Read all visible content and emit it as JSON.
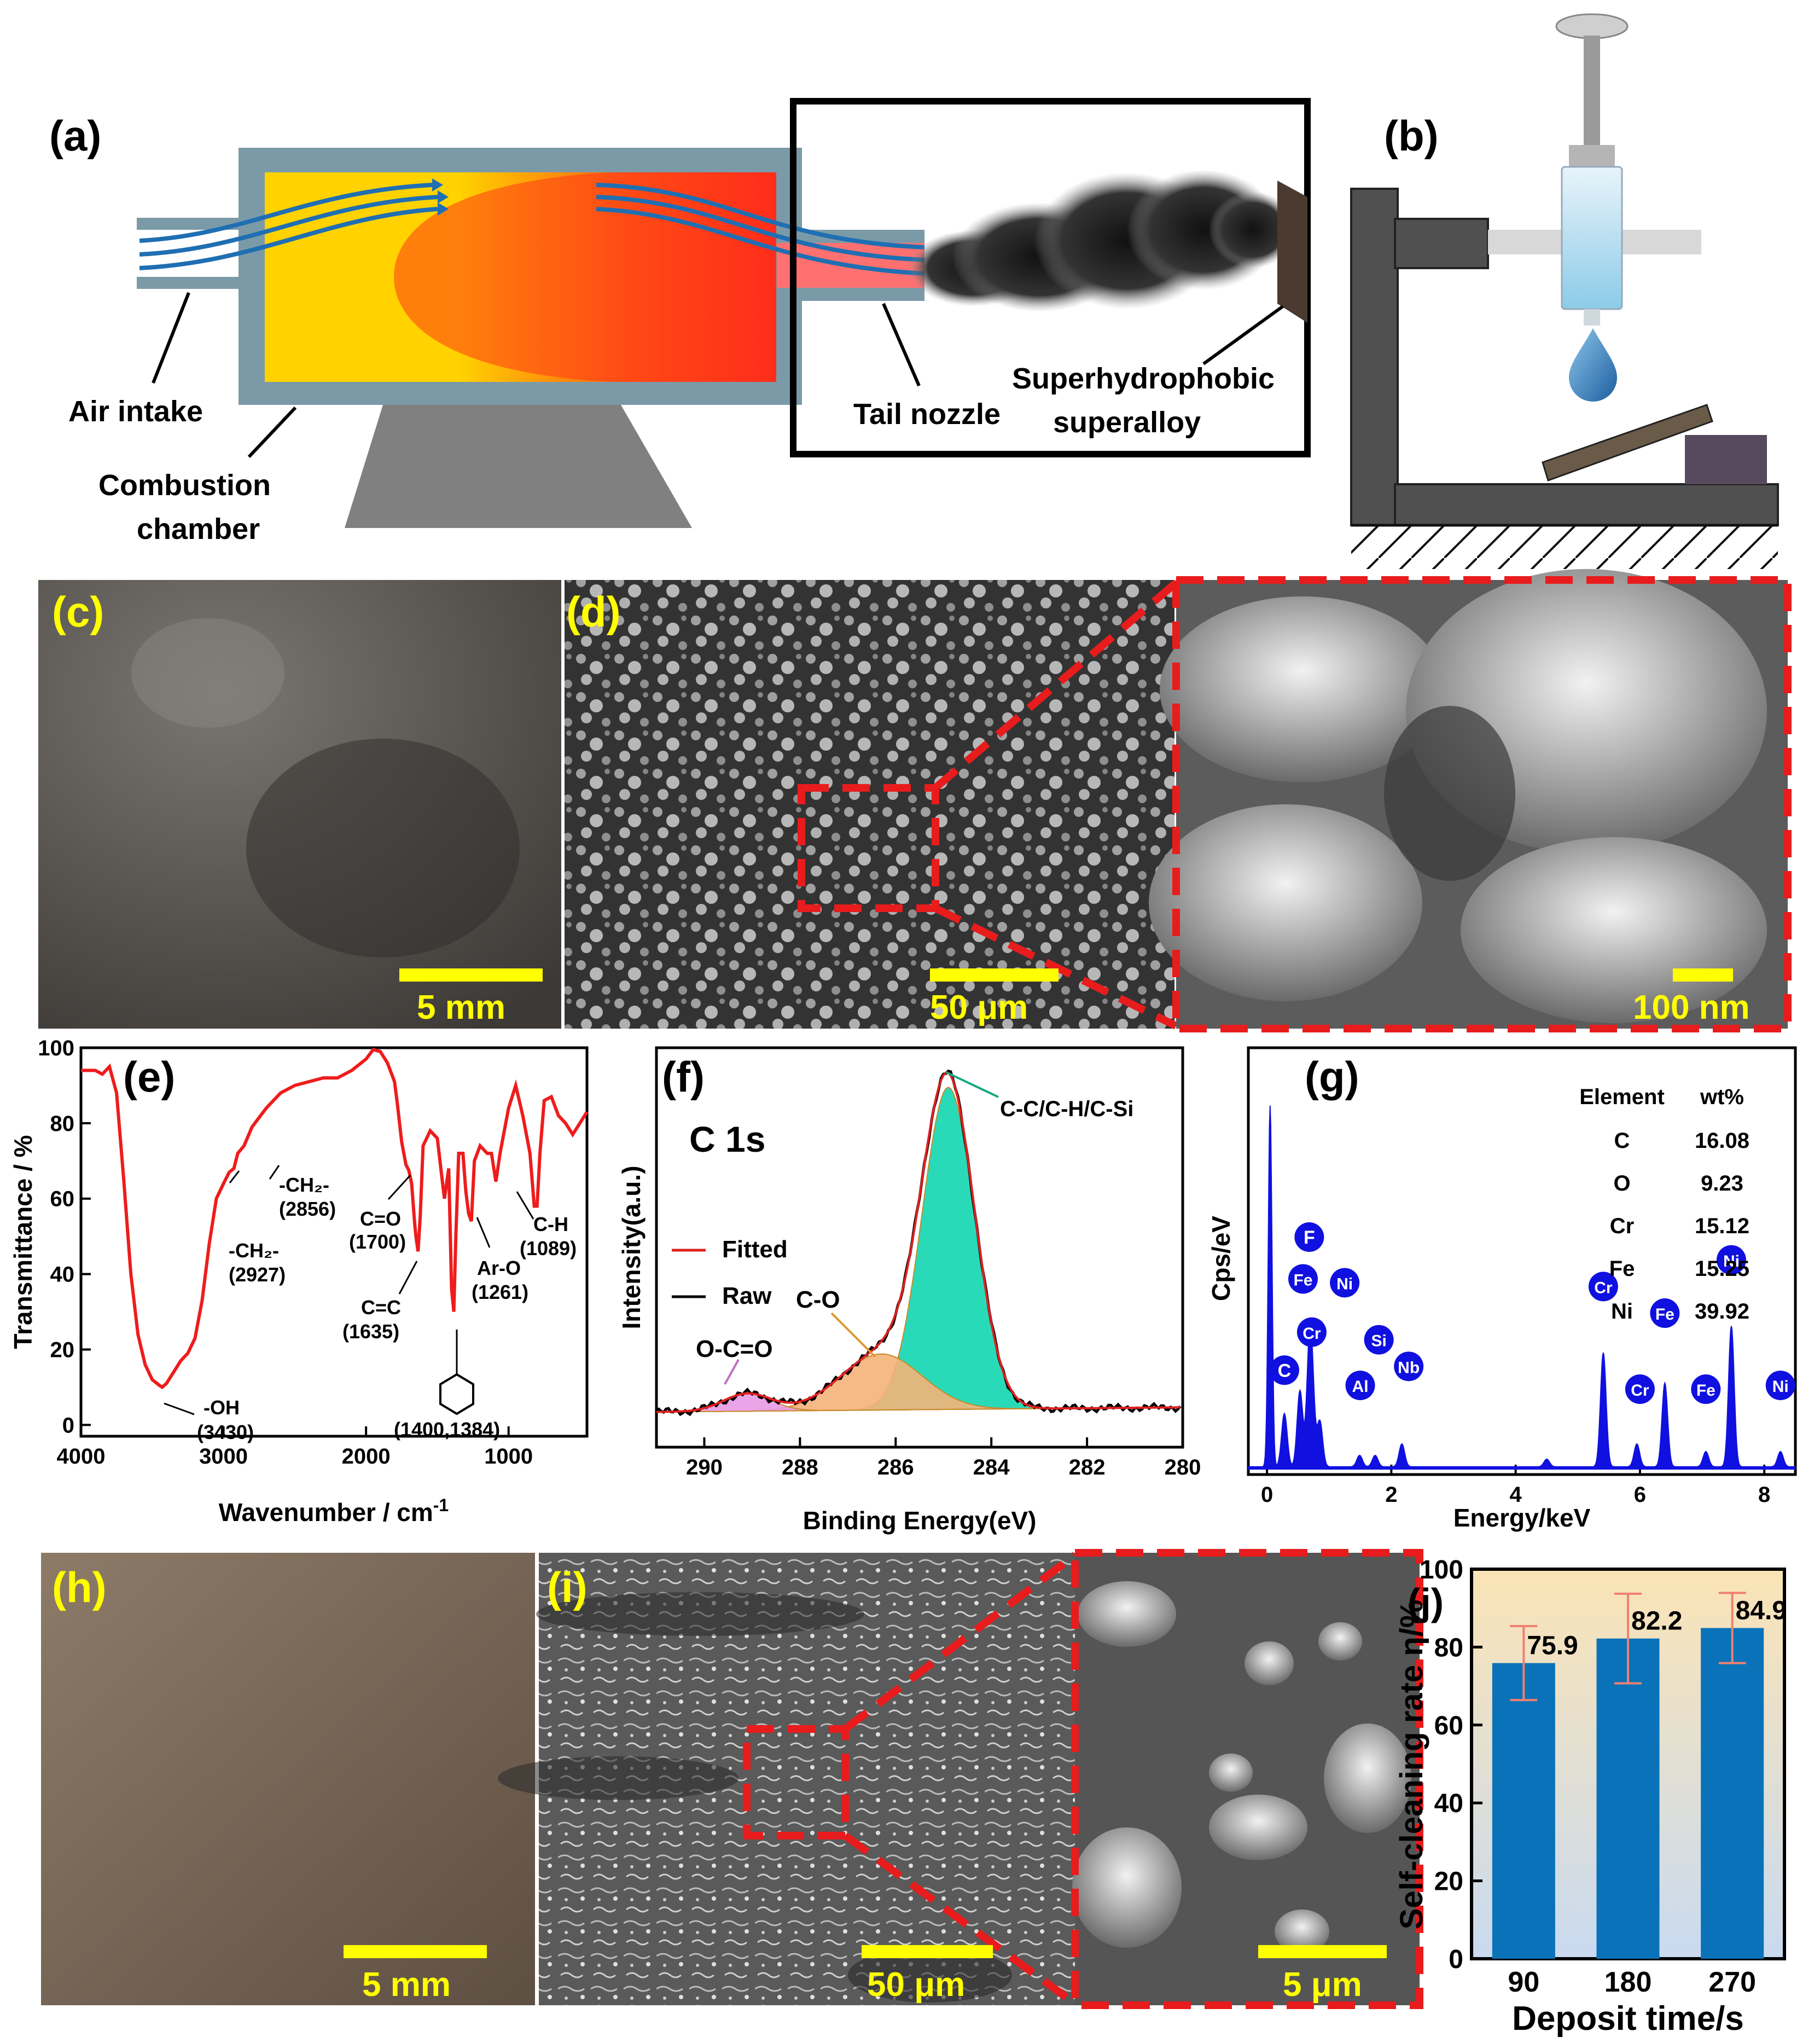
{
  "panels": {
    "a": {
      "label": "(a)",
      "air_intake": "Air intake",
      "combustion_line1": "Combustion",
      "combustion_line2": "chamber",
      "tail_nozzle": "Tail nozzle",
      "superhydro_line1": "Superhydrophobic",
      "superhydro_line2": "superalloy"
    },
    "b": {
      "label": "(b)"
    },
    "c": {
      "label": "(c)",
      "scale": "5 mm"
    },
    "d": {
      "label": "(d)",
      "scale": "50 μm",
      "zoom_scale": "100 nm"
    },
    "h": {
      "label": "(h)",
      "scale": "5 mm"
    },
    "i": {
      "label": "(i)",
      "scale": "50 μm",
      "zoom_scale": "5 μm"
    }
  },
  "colors": {
    "flame_yellow": "#ffd200",
    "flame_red": "#ff1e1e",
    "chamber_wall": "#7b9aa8",
    "air_arrow": "#1f6fb2",
    "scale_bar": "#ffff00",
    "label_yellow": "#ffff00",
    "ftir_red": "#ee1c1c",
    "xps_fill": "#12d6b0",
    "xps_co_fill": "#f5b27a",
    "xps_oco_fill": "#e89be6",
    "eds_blue": "#1010e0",
    "bar_blue": "#0a72b8",
    "error_bar": "#f08070"
  },
  "chart_data": [
    {
      "panel": "e",
      "label": "(e)",
      "type": "line",
      "xlabel": "Wavenumber / cm",
      "xlabel_sup": "-1",
      "ylabel": "Transmittance / %",
      "xlim": [
        4000,
        450
      ],
      "ylim": [
        -3,
        100
      ],
      "x_ticks": [
        4000,
        3000,
        2000,
        1000
      ],
      "y_ticks": [
        0,
        20,
        40,
        60,
        80,
        100
      ],
      "series": [
        {
          "x": [
            4000,
            3900,
            3850,
            3800,
            3750,
            3700,
            3650,
            3600,
            3550,
            3500,
            3450,
            3430,
            3400,
            3350,
            3300,
            3250,
            3200,
            3150,
            3100,
            3050,
            3000,
            2960,
            2927,
            2900,
            2856,
            2800,
            2700,
            2600,
            2500,
            2400,
            2300,
            2200,
            2100,
            2000,
            1950,
            1900,
            1850,
            1800,
            1780,
            1750,
            1720,
            1700,
            1680,
            1660,
            1650,
            1635,
            1620,
            1600,
            1550,
            1500,
            1450,
            1420,
            1400,
            1384,
            1370,
            1350,
            1320,
            1300,
            1280,
            1261,
            1240,
            1200,
            1150,
            1120,
            1089,
            1060,
            1000,
            950,
            900,
            850,
            820,
            800,
            780,
            750,
            700,
            650,
            600,
            550,
            500,
            450
          ],
          "y": [
            94,
            94,
            93,
            95,
            88,
            65,
            40,
            24,
            16,
            12,
            10.5,
            10,
            11,
            14,
            17,
            19,
            23,
            33,
            48,
            60,
            64,
            67,
            68,
            72,
            74,
            79,
            84,
            88,
            90,
            91,
            92,
            92,
            94,
            97,
            99.5,
            99,
            96,
            91,
            85,
            75,
            69,
            67.5,
            64,
            54,
            50,
            46,
            55,
            74,
            78,
            76,
            60,
            68,
            36,
            30,
            50,
            72,
            72,
            62,
            56,
            54,
            70,
            74,
            72,
            72,
            64.5,
            72,
            84,
            90,
            82,
            72,
            58,
            58,
            72,
            86,
            87,
            82,
            80,
            77,
            80,
            83
          ]
        }
      ],
      "annotations": [
        {
          "text": "-CH₂-",
          "sub": "(2856)"
        },
        {
          "text": "-CH₂-",
          "sub": "(2927)"
        },
        {
          "text": "C=O",
          "sub": "(1700)"
        },
        {
          "text": "C=C",
          "sub": "(1635)"
        },
        {
          "text": "Ar-O",
          "sub": "(1261)"
        },
        {
          "text": "C-H",
          "sub": "(1089)"
        },
        {
          "text": "-OH",
          "sub": "(3430)"
        },
        {
          "text": "(1400,1384)"
        }
      ]
    },
    {
      "panel": "f",
      "label": "(f)",
      "type": "area",
      "title": "C 1s",
      "xlabel": "Binding Energy(eV)",
      "ylabel": "Intensity(a.u.)",
      "xlim": [
        291,
        280
      ],
      "x_ticks": [
        290,
        288,
        286,
        284,
        282,
        280
      ],
      "ylim": [
        0,
        100
      ],
      "legend": [
        {
          "name": "Fitted",
          "color": "#e02020"
        },
        {
          "name": "Raw",
          "color": "#000000"
        }
      ],
      "peaks": [
        {
          "name": "C-C/C-H/C-Si",
          "center": 284.9,
          "height": 92,
          "width": 0.55
        },
        {
          "name": "C-O",
          "center": 286.3,
          "height": 16,
          "width": 0.85
        },
        {
          "name": "O-C=O",
          "center": 289.1,
          "height": 5,
          "width": 0.5
        }
      ]
    },
    {
      "panel": "g",
      "label": "(g)",
      "type": "bar",
      "xlabel": "Energy/keV",
      "ylabel": "Cps/eV",
      "xlim": [
        -0.3,
        8.5
      ],
      "x_ticks": [
        0,
        2,
        4,
        6,
        8
      ],
      "ylim": [
        0,
        100
      ],
      "peaks": [
        {
          "x": 0.05,
          "y": 95
        },
        {
          "x": 0.28,
          "y": 14
        },
        {
          "x": 0.53,
          "y": 20
        },
        {
          "x": 0.68,
          "y": 24
        },
        {
          "x": 0.72,
          "y": 18
        },
        {
          "x": 0.85,
          "y": 12
        },
        {
          "x": 1.49,
          "y": 3
        },
        {
          "x": 1.74,
          "y": 3
        },
        {
          "x": 2.17,
          "y": 6
        },
        {
          "x": 4.5,
          "y": 2
        },
        {
          "x": 5.41,
          "y": 30
        },
        {
          "x": 5.95,
          "y": 6
        },
        {
          "x": 6.4,
          "y": 22
        },
        {
          "x": 7.06,
          "y": 4
        },
        {
          "x": 7.47,
          "y": 37
        },
        {
          "x": 8.26,
          "y": 4
        }
      ],
      "markers": [
        {
          "name": "C",
          "x": 0.28,
          "y": 26
        },
        {
          "name": "F",
          "x": 0.68,
          "y": 61
        },
        {
          "name": "Fe",
          "x": 0.58,
          "y": 50
        },
        {
          "name": "Cr",
          "x": 0.72,
          "y": 36
        },
        {
          "name": "Ni",
          "x": 1.25,
          "y": 49
        },
        {
          "name": "Si",
          "x": 1.8,
          "y": 34
        },
        {
          "name": "Al",
          "x": 1.5,
          "y": 22
        },
        {
          "name": "Nb",
          "x": 2.28,
          "y": 27
        },
        {
          "name": "Cr",
          "x": 5.41,
          "y": 48
        },
        {
          "name": "Cr",
          "x": 6.0,
          "y": 21
        },
        {
          "name": "Fe",
          "x": 6.4,
          "y": 41
        },
        {
          "name": "Fe",
          "x": 7.06,
          "y": 21
        },
        {
          "name": "Ni",
          "x": 7.47,
          "y": 55
        },
        {
          "name": "Ni",
          "x": 8.26,
          "y": 22
        }
      ],
      "table": {
        "headers": [
          "Element",
          "wt%"
        ],
        "rows": [
          [
            "C",
            "16.08"
          ],
          [
            "O",
            "9.23"
          ],
          [
            "Cr",
            "15.12"
          ],
          [
            "Fe",
            "15.25"
          ],
          [
            "Ni",
            "39.92"
          ]
        ]
      }
    },
    {
      "panel": "j",
      "label": "(j)",
      "type": "bar",
      "xlabel": "Deposit time/s",
      "ylabel": "Self-cleaning rate η/%",
      "categories": [
        "90",
        "180",
        "270"
      ],
      "values": [
        75.9,
        82.2,
        84.9
      ],
      "value_labels": [
        "75.9",
        "82.2",
        "84.9"
      ],
      "errors": [
        9.5,
        11.5,
        9
      ],
      "ylim": [
        0,
        100
      ],
      "y_ticks": [
        0,
        20,
        40,
        60,
        80,
        100
      ]
    }
  ]
}
